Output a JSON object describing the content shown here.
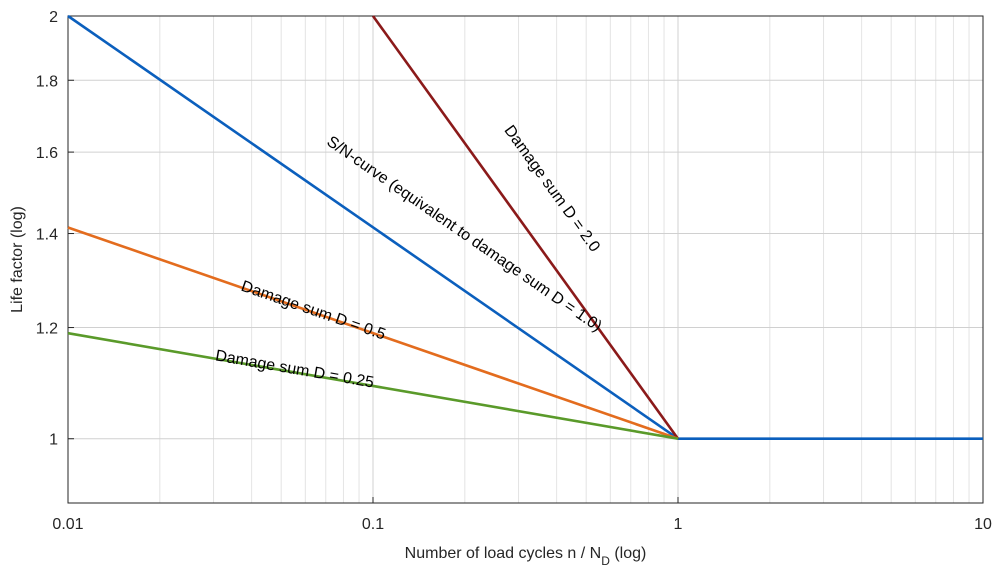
{
  "chart_data": {
    "type": "line",
    "x_scale": "log",
    "y_scale": "log",
    "xlabel": "Number of load cycles n / N",
    "xlabel_sub": "D",
    "xlabel_suffix": " (log)",
    "ylabel": "Life factor (log)",
    "xlim": [
      0.01,
      10
    ],
    "ylim": [
      0.9,
      2
    ],
    "grid": true,
    "x_major_ticks": [
      0.01,
      0.1,
      1,
      10
    ],
    "x_tick_labels": [
      "0.01",
      "0.1",
      "1",
      "10"
    ],
    "y_ticks": [
      1,
      1.2,
      1.4,
      1.6,
      1.8,
      2
    ],
    "y_tick_labels": [
      "1",
      "1.2",
      "1.4",
      "1.6",
      "1.8",
      "2"
    ],
    "series": [
      {
        "name": "S/N-curve (equivalent to damage sum D = 1.0)",
        "color": "#0b5fbd",
        "x": [
          0.01,
          1,
          10
        ],
        "y": [
          2.0,
          1.0,
          1.0
        ]
      },
      {
        "name": "Damage sum D = 2.0",
        "color": "#8b1a1a",
        "x": [
          0.1,
          1
        ],
        "y": [
          2.0,
          1.0
        ]
      },
      {
        "name": "Damage sum D = 0.5",
        "color": "#e36c1e",
        "x": [
          0.01,
          1
        ],
        "y": [
          1.414,
          1.0
        ]
      },
      {
        "name": "Damage sum D = 0.25",
        "color": "#5a9a2a",
        "x": [
          0.01,
          1
        ],
        "y": [
          1.189,
          1.0
        ]
      }
    ],
    "annotations": [
      {
        "text": "S/N-curve (equivalent to damage sum D = 1.0)",
        "series": 0,
        "at_x": 0.195,
        "at_y": 1.39
      },
      {
        "text": "Damage sum D = 2.0",
        "series": 1,
        "at_x": 0.375,
        "at_y": 1.5
      },
      {
        "text": "Damage sum D = 0.5",
        "series": 2,
        "at_x": 0.063,
        "at_y": 1.225
      },
      {
        "text": "Damage sum D = 0.25",
        "series": 3,
        "at_x": 0.055,
        "at_y": 1.112
      }
    ]
  }
}
